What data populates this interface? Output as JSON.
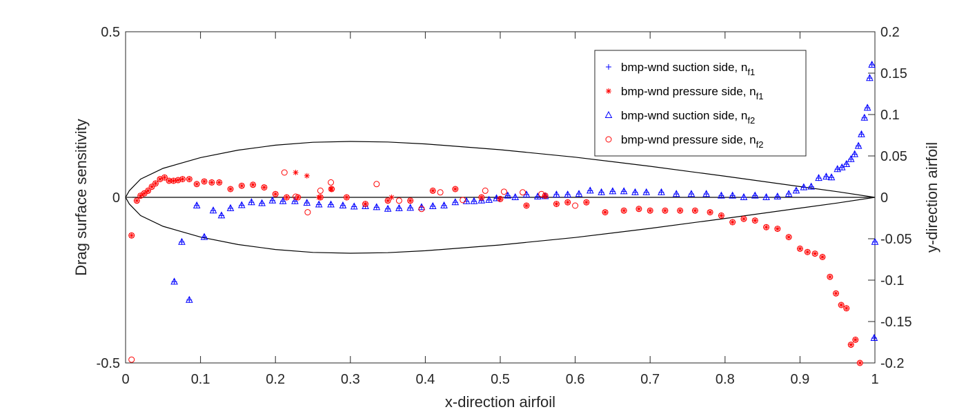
{
  "chart_data": {
    "type": "scatter",
    "title": "",
    "xlabel": "x-direction airfoil",
    "ylabel": "Drag  surface sensitivity",
    "y2label": "y-direction airfoil",
    "xlim": [
      0,
      1
    ],
    "ylim": [
      -0.5,
      0.5
    ],
    "y2lim": [
      -0.2,
      0.2
    ],
    "xticks": [
      "0",
      "0.1",
      "0.2",
      "0.3",
      "0.4",
      "0.5",
      "0.6",
      "0.7",
      "0.8",
      "0.9",
      "1"
    ],
    "yticks": [
      "-0.5",
      "0",
      "0.5"
    ],
    "y2ticks": [
      "-0.2",
      "-0.15",
      "-0.1",
      "-0.05",
      "0",
      "0.05",
      "0.1",
      "0.15",
      "0.2"
    ],
    "grid": false,
    "legend_position": "top-right",
    "legend": [
      {
        "label": "bmp-wnd suction side, n",
        "sub": "f1",
        "marker": "plus",
        "color": "#0000ff"
      },
      {
        "label": "bmp-wnd pressure side, n",
        "sub": "f1",
        "marker": "star",
        "color": "#ff0000"
      },
      {
        "label": "bmp-wnd suction side, n",
        "sub": "f2",
        "marker": "triangle",
        "color": "#0000ff"
      },
      {
        "label": "bmp-wnd pressure side, n",
        "sub": "f2",
        "marker": "circle",
        "color": "#ff0000"
      }
    ],
    "airfoil_outline": {
      "axis": "right",
      "upper": [
        [
          0,
          0
        ],
        [
          0.005,
          0.008
        ],
        [
          0.02,
          0.022
        ],
        [
          0.05,
          0.035
        ],
        [
          0.1,
          0.048
        ],
        [
          0.15,
          0.057
        ],
        [
          0.2,
          0.063
        ],
        [
          0.25,
          0.0665
        ],
        [
          0.3,
          0.0675
        ],
        [
          0.35,
          0.0668
        ],
        [
          0.4,
          0.0645
        ],
        [
          0.5,
          0.0575
        ],
        [
          0.6,
          0.0485
        ],
        [
          0.7,
          0.0375
        ],
        [
          0.8,
          0.0255
        ],
        [
          0.9,
          0.013
        ],
        [
          0.95,
          0.0068
        ],
        [
          1,
          0
        ]
      ],
      "lower": [
        [
          0,
          0
        ],
        [
          0.005,
          -0.008
        ],
        [
          0.02,
          -0.022
        ],
        [
          0.05,
          -0.035
        ],
        [
          0.1,
          -0.048
        ],
        [
          0.15,
          -0.057
        ],
        [
          0.2,
          -0.063
        ],
        [
          0.25,
          -0.0665
        ],
        [
          0.3,
          -0.0675
        ],
        [
          0.35,
          -0.0668
        ],
        [
          0.4,
          -0.0645
        ],
        [
          0.5,
          -0.0575
        ],
        [
          0.6,
          -0.0485
        ],
        [
          0.7,
          -0.0375
        ],
        [
          0.8,
          -0.0255
        ],
        [
          0.9,
          -0.013
        ],
        [
          0.95,
          -0.0068
        ],
        [
          1,
          0
        ]
      ]
    },
    "series": [
      {
        "name": "suction_f1_f2",
        "markers": [
          "plus",
          "triangle"
        ],
        "color": "#0000ff",
        "x": [
          0.065,
          0.075,
          0.085,
          0.095,
          0.105,
          0.117,
          0.128,
          0.14,
          0.155,
          0.168,
          0.182,
          0.196,
          0.21,
          0.226,
          0.242,
          0.258,
          0.274,
          0.29,
          0.305,
          0.32,
          0.335,
          0.35,
          0.365,
          0.38,
          0.395,
          0.41,
          0.425,
          0.44,
          0.455,
          0.465,
          0.475,
          0.485,
          0.495,
          0.51,
          0.52,
          0.535,
          0.55,
          0.56,
          0.575,
          0.59,
          0.605,
          0.62,
          0.635,
          0.65,
          0.665,
          0.68,
          0.695,
          0.715,
          0.735,
          0.755,
          0.775,
          0.795,
          0.81,
          0.825,
          0.84,
          0.855,
          0.87,
          0.885,
          0.895,
          0.905,
          0.915,
          0.925,
          0.935,
          0.942,
          0.95,
          0.956,
          0.962,
          0.968,
          0.973,
          0.978,
          0.982,
          0.986,
          0.99,
          0.993,
          0.996,
          0.999,
          1.0
        ],
        "y": [
          -0.255,
          -0.135,
          -0.31,
          -0.025,
          -0.12,
          -0.04,
          -0.055,
          -0.033,
          -0.024,
          -0.015,
          -0.018,
          -0.01,
          -0.012,
          -0.012,
          -0.017,
          -0.022,
          -0.022,
          -0.025,
          -0.028,
          -0.027,
          -0.03,
          -0.035,
          -0.033,
          -0.032,
          -0.03,
          -0.027,
          -0.025,
          -0.015,
          -0.012,
          -0.012,
          -0.01,
          -0.008,
          -0.003,
          0.005,
          0.0,
          0.008,
          0.002,
          0.003,
          0.008,
          0.008,
          0.01,
          0.02,
          0.015,
          0.018,
          0.018,
          0.015,
          0.015,
          0.015,
          0.01,
          0.01,
          0.01,
          0.005,
          0.005,
          0.0,
          0.005,
          0.0,
          0.002,
          0.01,
          0.02,
          0.03,
          0.032,
          0.058,
          0.062,
          0.06,
          0.085,
          0.09,
          0.1,
          0.115,
          0.13,
          0.155,
          0.19,
          0.24,
          0.27,
          0.36,
          0.4,
          -0.425,
          -0.135
        ]
      },
      {
        "name": "pressure_f1_f2",
        "markers": [
          "star",
          "circle"
        ],
        "color": "#ff0000",
        "x": [
          0.008,
          0.015,
          0.02,
          0.025,
          0.03,
          0.035,
          0.04,
          0.046,
          0.052,
          0.058,
          0.064,
          0.07,
          0.076,
          0.085,
          0.095,
          0.105,
          0.115,
          0.125,
          0.14,
          0.155,
          0.17,
          0.185,
          0.2,
          0.215,
          0.23,
          0.26,
          0.275,
          0.295,
          0.32,
          0.35,
          0.38,
          0.41,
          0.44,
          0.475,
          0.5,
          0.535,
          0.56,
          0.575,
          0.59,
          0.615,
          0.64,
          0.665,
          0.685,
          0.7,
          0.72,
          0.74,
          0.76,
          0.78,
          0.795,
          0.81,
          0.825,
          0.84,
          0.855,
          0.87,
          0.885,
          0.9,
          0.91,
          0.92,
          0.93,
          0.94,
          0.948,
          0.955,
          0.962,
          0.968,
          0.974,
          0.98
        ],
        "y": [
          -0.115,
          -0.01,
          0.005,
          0.012,
          0.02,
          0.032,
          0.042,
          0.055,
          0.06,
          0.05,
          0.05,
          0.052,
          0.055,
          0.055,
          0.04,
          0.048,
          0.045,
          0.045,
          0.025,
          0.035,
          0.038,
          0.03,
          0.01,
          0.0,
          0.0,
          0.0,
          0.025,
          0.0,
          -0.02,
          -0.01,
          -0.01,
          0.02,
          0.025,
          0.0,
          -0.005,
          -0.025,
          0.005,
          -0.02,
          -0.015,
          -0.015,
          -0.045,
          -0.04,
          -0.035,
          -0.04,
          -0.04,
          -0.04,
          -0.04,
          -0.045,
          -0.055,
          -0.075,
          -0.065,
          -0.07,
          -0.09,
          -0.095,
          -0.12,
          -0.155,
          -0.165,
          -0.17,
          -0.18,
          -0.24,
          -0.29,
          -0.325,
          -0.335,
          -0.445,
          -0.43,
          -0.5
        ]
      },
      {
        "name": "pressure_f2_only",
        "markers": [
          "circle"
        ],
        "color": "#ff0000",
        "x": [
          0.008,
          0.212,
          0.227,
          0.243,
          0.26,
          0.274,
          0.335,
          0.365,
          0.395,
          0.42,
          0.45,
          0.48,
          0.505,
          0.53,
          0.555,
          0.6
        ],
        "y": [
          -0.49,
          0.075,
          0.002,
          -0.045,
          0.02,
          0.045,
          0.04,
          -0.01,
          -0.035,
          0.015,
          -0.008,
          0.02,
          0.017,
          0.015,
          0.01,
          -0.025
        ]
      },
      {
        "name": "pressure_f1_only",
        "markers": [
          "star"
        ],
        "color": "#ff0000",
        "x": [
          0.227,
          0.242,
          0.274,
          0.258,
          0.355
        ],
        "y": [
          0.075,
          0.065,
          0.025,
          0.0,
          0.0
        ]
      }
    ]
  }
}
